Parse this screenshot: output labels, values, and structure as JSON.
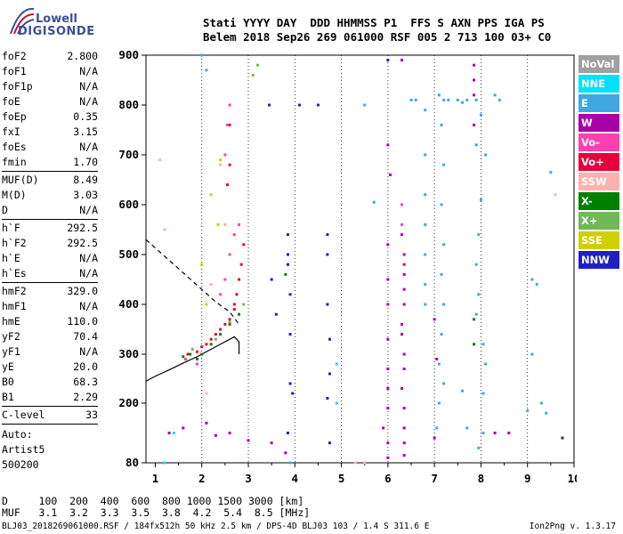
{
  "logo": {
    "line1": "Lowell",
    "line2": "DIGISONDE"
  },
  "header": {
    "line1": "Stati YYYY DAY  DDD HHMMSS P1  FFS S AXN PPS IGA PS",
    "line2": "Belem 2018 Sep26 269 061000 RSF 005 2 713 100 03+ C0"
  },
  "params": [
    {
      "group": [
        [
          "foF2",
          "2.800"
        ],
        [
          "foF1",
          "N/A"
        ],
        [
          "foF1p",
          "N/A"
        ],
        [
          "foE",
          "N/A"
        ],
        [
          "foEp",
          "0.35"
        ],
        [
          "fxI",
          "3.15"
        ],
        [
          "foEs",
          "N/A"
        ],
        [
          "fmin",
          "1.70"
        ]
      ]
    },
    {
      "group": [
        [
          "MUF(D)",
          "8.49"
        ],
        [
          "M(D)",
          "3.03"
        ],
        [
          "D",
          "N/A"
        ]
      ]
    },
    {
      "group": [
        [
          "h`F",
          "292.5"
        ],
        [
          "h`F2",
          "292.5"
        ],
        [
          "h`E",
          "N/A"
        ],
        [
          "h`Es",
          "N/A"
        ]
      ]
    },
    {
      "group": [
        [
          "hmF2",
          "329.0"
        ],
        [
          "hmF1",
          "N/A"
        ],
        [
          "hmE",
          "110.0"
        ],
        [
          "yF2",
          "70.4"
        ],
        [
          "yF1",
          "N/A"
        ],
        [
          "yE",
          "20.0"
        ],
        [
          "B0",
          "68.3"
        ],
        [
          "B1",
          "2.29"
        ]
      ]
    },
    {
      "group": [
        [
          "C-level",
          "33"
        ]
      ]
    },
    {
      "group": [
        [
          "Auto:",
          ""
        ],
        [
          "Artist5",
          ""
        ],
        [
          "500200",
          ""
        ]
      ]
    }
  ],
  "legend": [
    {
      "label": "NoVal",
      "color": "#a0a0a0"
    },
    {
      "label": "NNE",
      "color": "#00e0ff"
    },
    {
      "label": "E",
      "color": "#40a8e0"
    },
    {
      "label": "W",
      "color": "#a800a8"
    },
    {
      "label": "Vo-",
      "color": "#ff40b0"
    },
    {
      "label": "Vo+",
      "color": "#e8003c"
    },
    {
      "label": "SSW",
      "color": "#ffb0b0"
    },
    {
      "label": "X-",
      "color": "#008000"
    },
    {
      "label": "X+",
      "color": "#70b858"
    },
    {
      "label": "SSE",
      "color": "#d0d000"
    },
    {
      "label": "NNW",
      "color": "#2020c0"
    }
  ],
  "footer": {
    "line1": "D     100  200  400  600  800 1000 1500 3000 [km]",
    "line2": "MUF   3.1  3.2  3.3  3.5  3.8  4.2  5.4  8.5 [MHz]",
    "fileinfo": "BLJ03_2018269061000.RSF / 184fx512h 50 kHz 2.5 km / DPS-4D BLJ03 103 / 1.4 S 311.6 E",
    "version": "Ion2Png v. 1.3.17"
  },
  "chart_data": {
    "type": "scatter",
    "x_ticks": [
      "1",
      "2",
      "3",
      "4",
      "5",
      "6",
      "7",
      "8",
      "9",
      "10"
    ],
    "y_ticks": [
      "80",
      "200",
      "300",
      "400",
      "500",
      "600",
      "700",
      "800",
      "900"
    ],
    "xlim": [
      0.8,
      10.0
    ],
    "ylim": [
      80,
      900
    ],
    "grid": true,
    "series": [
      {
        "name": "Vo+",
        "points": [
          [
            1.7,
            300
          ],
          [
            1.9,
            305
          ],
          [
            2.0,
            315
          ],
          [
            2.1,
            320
          ],
          [
            2.2,
            330
          ],
          [
            2.3,
            340
          ],
          [
            2.4,
            350
          ],
          [
            2.5,
            360
          ],
          [
            2.6,
            370
          ],
          [
            2.7,
            390
          ],
          [
            2.75,
            420
          ],
          [
            2.8,
            450
          ],
          [
            2.85,
            480
          ],
          [
            2.9,
            520
          ],
          [
            2.55,
            640
          ],
          [
            2.6,
            680
          ],
          [
            2.6,
            760
          ],
          [
            6.35,
            480
          ],
          [
            2.7,
            400
          ]
        ]
      },
      {
        "name": "NNW",
        "points": [
          [
            3.5,
            450
          ],
          [
            3.6,
            380
          ],
          [
            3.85,
            540
          ],
          [
            3.85,
            500
          ],
          [
            3.85,
            480
          ],
          [
            3.9,
            420
          ],
          [
            3.9,
            340
          ],
          [
            3.9,
            240
          ],
          [
            3.85,
            140
          ],
          [
            4.7,
            540
          ],
          [
            4.7,
            500
          ],
          [
            4.7,
            400
          ],
          [
            4.75,
            330
          ],
          [
            4.75,
            260
          ],
          [
            4.7,
            210
          ],
          [
            4.75,
            120
          ],
          [
            3.95,
            220
          ],
          [
            3.45,
            800
          ],
          [
            4.5,
            800
          ],
          [
            4.1,
            800
          ],
          [
            6.0,
            890
          ],
          [
            9.75,
            130
          ]
        ]
      },
      {
        "name": "E",
        "points": [
          [
            6.8,
            790
          ],
          [
            6.8,
            700
          ],
          [
            6.8,
            620
          ],
          [
            6.8,
            560
          ],
          [
            6.8,
            500
          ],
          [
            6.8,
            440
          ],
          [
            6.8,
            400
          ],
          [
            7.2,
            810
          ],
          [
            7.3,
            810
          ],
          [
            7.5,
            810
          ],
          [
            7.6,
            805
          ],
          [
            7.7,
            810
          ],
          [
            7.9,
            810
          ],
          [
            8.0,
            780
          ],
          [
            8.3,
            820
          ],
          [
            8.4,
            810
          ],
          [
            7.1,
            820
          ],
          [
            7.15,
            760
          ],
          [
            7.2,
            680
          ],
          [
            7.15,
            600
          ],
          [
            7.2,
            520
          ],
          [
            7.15,
            460
          ],
          [
            7.2,
            400
          ],
          [
            7.15,
            340
          ],
          [
            7.1,
            280
          ],
          [
            7.2,
            240
          ],
          [
            7.1,
            200
          ],
          [
            7.05,
            150
          ],
          [
            7.9,
            720
          ],
          [
            8.1,
            700
          ],
          [
            8.0,
            610
          ],
          [
            7.95,
            540
          ],
          [
            7.9,
            480
          ],
          [
            7.95,
            420
          ],
          [
            7.9,
            380
          ],
          [
            8.05,
            320
          ],
          [
            8.1,
            280
          ],
          [
            8.05,
            220
          ],
          [
            8.05,
            140
          ],
          [
            7.95,
            110
          ],
          [
            5.5,
            800
          ],
          [
            5.7,
            605
          ],
          [
            9.1,
            450
          ],
          [
            9.2,
            440
          ],
          [
            9.0,
            185
          ],
          [
            9.5,
            665
          ],
          [
            9.4,
            180
          ],
          [
            9.3,
            200
          ],
          [
            9.1,
            300
          ],
          [
            6.6,
            810
          ],
          [
            6.5,
            810
          ],
          [
            3.9,
            80
          ],
          [
            7.6,
            225
          ],
          [
            7.7,
            150
          ],
          [
            2.1,
            870
          ],
          [
            2.0,
            900
          ]
        ]
      },
      {
        "name": "W",
        "points": [
          [
            6.3,
            890
          ],
          [
            6.3,
            540
          ],
          [
            6.35,
            500
          ],
          [
            6.35,
            460
          ],
          [
            6.35,
            430
          ],
          [
            6.35,
            400
          ],
          [
            6.3,
            360
          ],
          [
            6.3,
            340
          ],
          [
            6.35,
            300
          ],
          [
            6.35,
            270
          ],
          [
            6.3,
            230
          ],
          [
            6.35,
            190
          ],
          [
            6.35,
            150
          ],
          [
            6.35,
            120
          ],
          [
            6.35,
            95
          ],
          [
            6.0,
            720
          ],
          [
            6.05,
            660
          ],
          [
            6.0,
            520
          ],
          [
            6.0,
            450
          ],
          [
            6.0,
            400
          ],
          [
            6.0,
            330
          ],
          [
            6.0,
            270
          ],
          [
            6.0,
            230
          ],
          [
            6.0,
            190
          ],
          [
            6.0,
            120
          ],
          [
            6.0,
            90
          ],
          [
            7.85,
            880
          ],
          [
            7.85,
            850
          ],
          [
            7.85,
            820
          ],
          [
            7.85,
            760
          ],
          [
            8.3,
            140
          ],
          [
            8.6,
            140
          ],
          [
            1.3,
            140
          ],
          [
            1.6,
            150
          ],
          [
            2.1,
            160
          ],
          [
            2.3,
            135
          ],
          [
            2.6,
            140
          ],
          [
            3.0,
            125
          ],
          [
            3.5,
            120
          ],
          [
            3.8,
            100
          ],
          [
            7.05,
            290
          ],
          [
            7.0,
            130
          ],
          [
            5.9,
            150
          ],
          [
            7.0,
            370
          ]
        ]
      },
      {
        "name": "X-",
        "points": [
          [
            1.6,
            295
          ],
          [
            1.75,
            300
          ],
          [
            1.9,
            290
          ],
          [
            2.0,
            300
          ],
          [
            2.2,
            320
          ],
          [
            2.4,
            340
          ],
          [
            2.6,
            360
          ],
          [
            2.8,
            380
          ],
          [
            7.85,
            370
          ],
          [
            7.85,
            320
          ],
          [
            3.8,
            460
          ]
        ]
      },
      {
        "name": "Vo-",
        "points": [
          [
            2.4,
            420
          ],
          [
            2.5,
            450
          ],
          [
            2.6,
            500
          ],
          [
            2.7,
            540
          ],
          [
            2.8,
            560
          ],
          [
            2.5,
            700
          ],
          [
            2.55,
            760
          ],
          [
            2.6,
            800
          ],
          [
            1.65,
            290
          ],
          [
            1.9,
            280
          ],
          [
            6.3,
            600
          ],
          [
            6.3,
            560
          ]
        ]
      },
      {
        "name": "NNE",
        "points": [
          [
            1.2,
            80
          ],
          [
            1.4,
            140
          ],
          [
            4.9,
            280
          ],
          [
            4.9,
            200
          ]
        ]
      },
      {
        "name": "SSW",
        "points": [
          [
            1.1,
            690
          ],
          [
            1.2,
            550
          ],
          [
            2.2,
            440
          ],
          [
            2.4,
            680
          ],
          [
            2.5,
            560
          ],
          [
            5.3,
            80
          ],
          [
            5.5,
            80
          ],
          [
            9.6,
            620
          ],
          [
            2.1,
            220
          ]
        ]
      },
      {
        "name": "SSE",
        "points": [
          [
            2.4,
            690
          ],
          [
            2.2,
            620
          ],
          [
            2.35,
            560
          ],
          [
            2.0,
            480
          ],
          [
            2.1,
            400
          ]
        ]
      },
      {
        "name": "X+",
        "points": [
          [
            1.8,
            310
          ],
          [
            2.3,
            330
          ],
          [
            2.6,
            365
          ],
          [
            2.9,
            400
          ],
          [
            3.2,
            880
          ],
          [
            3.1,
            860
          ]
        ]
      }
    ]
  }
}
